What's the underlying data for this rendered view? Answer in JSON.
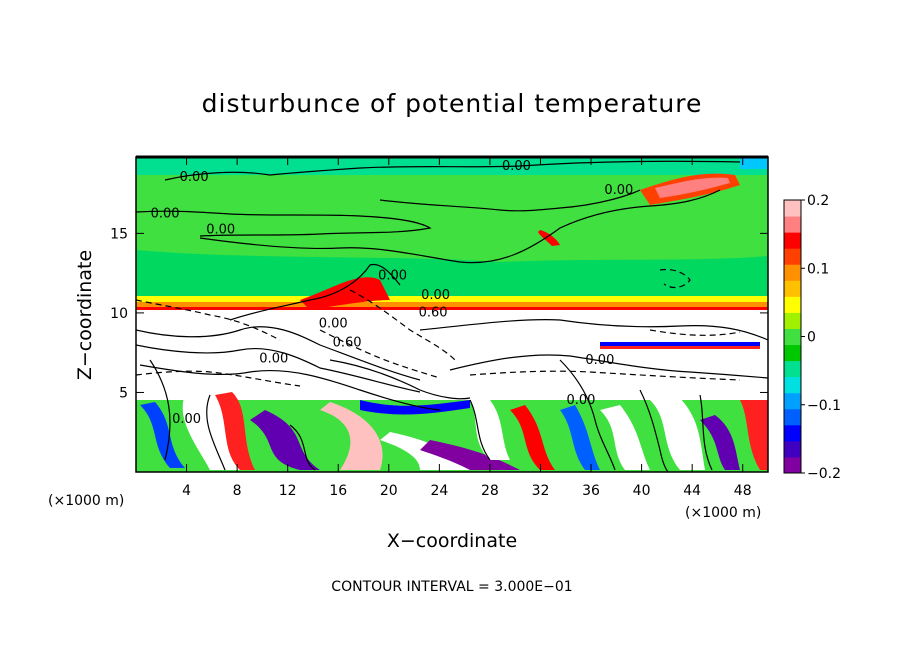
{
  "chart_data": {
    "type": "heatmap",
    "title": "disturbunce of potential temperature",
    "xlabel": "X−coordinate",
    "ylabel": "Z−coordinate",
    "x_unit": "(×1000 m)",
    "z_unit": "(×1000 m)",
    "xlim": [
      0,
      50
    ],
    "ylim": [
      0,
      19.8
    ],
    "x_ticks": [
      4,
      8,
      12,
      16,
      20,
      24,
      28,
      32,
      36,
      40,
      44,
      48
    ],
    "x_tick_labels": [
      "4",
      "8",
      "12",
      "16",
      "20",
      "24",
      "28",
      "32",
      "36",
      "40",
      "44",
      "48"
    ],
    "y_ticks": [
      5,
      10,
      15
    ],
    "y_tick_labels": [
      "5",
      "10",
      "15"
    ],
    "colorbar": {
      "range": [
        -0.2,
        0.2
      ],
      "ticks": [
        0.2,
        0.1,
        0,
        -0.1,
        -0.2
      ],
      "tick_labels": [
        "0.2",
        "0.1",
        "0",
        "−0.1",
        "−0.2"
      ],
      "colors": [
        "#8000a0",
        "#4000c0",
        "#0000ff",
        "#0060ff",
        "#00a0ff",
        "#00e0e0",
        "#00e090",
        "#00c800",
        "#40e040",
        "#a0f000",
        "#ffff00",
        "#ffc000",
        "#ff9000",
        "#ff4000",
        "#ff0000",
        "#ff8080",
        "#ffc0c0"
      ]
    },
    "contour_interval_note": "CONTOUR INTERVAL = 3.000E−01",
    "contour_labels": [
      {
        "text": "0.00",
        "x": 4.6,
        "z": 18.6
      },
      {
        "text": "0.00",
        "x": 2.3,
        "z": 16.3
      },
      {
        "text": "0.00",
        "x": 6.7,
        "z": 15.3
      },
      {
        "text": "0.00",
        "x": 30.1,
        "z": 19.3
      },
      {
        "text": "0.00",
        "x": 38.2,
        "z": 17.8
      },
      {
        "text": "0.00",
        "x": 20.3,
        "z": 12.4
      },
      {
        "text": "0.00",
        "x": 23.7,
        "z": 11.2
      },
      {
        "text": "0.60",
        "x": 23.5,
        "z": 10.1
      },
      {
        "text": "0.00",
        "x": 15.6,
        "z": 9.4
      },
      {
        "text": "0.60",
        "x": 16.7,
        "z": 8.2
      },
      {
        "text": "0.00",
        "x": 10.9,
        "z": 7.2
      },
      {
        "text": "0.00",
        "x": 36.7,
        "z": 7.1
      },
      {
        "text": "0.00",
        "x": 35.2,
        "z": 4.6
      },
      {
        "text": "0.00",
        "x": 4.0,
        "z": 3.4
      }
    ]
  }
}
